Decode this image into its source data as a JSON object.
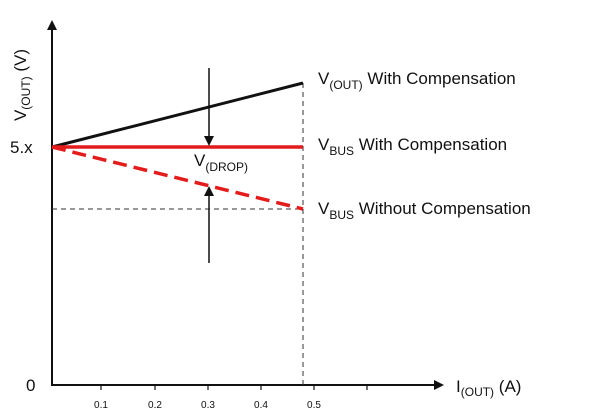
{
  "y_axis": {
    "label": {
      "main": "V",
      "sub": "(OUT)",
      "rest": " (V)"
    },
    "ticks": [
      "5.x",
      "0"
    ]
  },
  "x_axis": {
    "label": {
      "main": "I",
      "sub": "(OUT)",
      "rest": " (A)"
    },
    "ticks": [
      "0.1",
      "0.2",
      "0.3",
      "0.4",
      "0.5"
    ]
  },
  "drop_label": {
    "main": "V",
    "sub": "(DROP)"
  },
  "lines": [
    {
      "main": "V",
      "sub": "(OUT)",
      "rest": " With Compensation"
    },
    {
      "main": "V",
      "sub": "BUS",
      "rest": " With Compensation"
    },
    {
      "main": "V",
      "sub": "BUS",
      "rest": " Without Compensation"
    }
  ]
}
